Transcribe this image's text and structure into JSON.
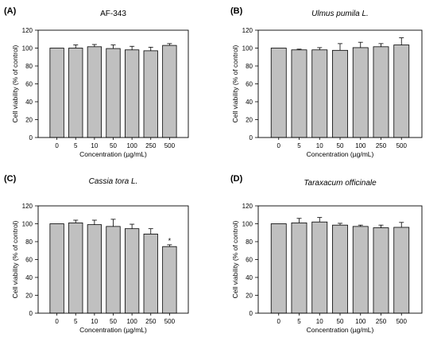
{
  "chart_data": [
    {
      "type": "bar",
      "panel": "(A)",
      "title": "AF-343",
      "title_style": "normal",
      "xlabel": "Concentration (µg/mL)",
      "ylabel": "Cell viability (% of control)",
      "ylim": [
        0,
        120
      ],
      "yticks": [
        "0",
        "20",
        "40",
        "60",
        "80",
        "100",
        "120"
      ],
      "categories": [
        "0",
        "5",
        "10",
        "50",
        "100",
        "250",
        "500"
      ],
      "values": [
        100,
        100,
        101.5,
        99.5,
        98,
        97,
        103
      ],
      "errors": [
        0,
        3.5,
        2.5,
        4,
        4,
        4,
        2
      ],
      "annotations": [
        "",
        "",
        "",
        "",
        "",
        "",
        ""
      ],
      "bar_color": "#c0c0c0"
    },
    {
      "type": "bar",
      "panel": "(B)",
      "title": "Ulmus pumila L.",
      "title_style": "italic",
      "xlabel": "Concentration (µg/mL)",
      "ylabel": "Cell viability (% of control)",
      "ylim": [
        0,
        120
      ],
      "yticks": [
        "0",
        "20",
        "40",
        "60",
        "80",
        "100",
        "120"
      ],
      "categories": [
        "0",
        "5",
        "10",
        "50",
        "100",
        "250",
        "500"
      ],
      "values": [
        100,
        98,
        98,
        97.5,
        100.5,
        101.5,
        103.5
      ],
      "errors": [
        0,
        0.8,
        2.5,
        7.5,
        6,
        3.5,
        8
      ],
      "annotations": [
        "",
        "",
        "",
        "",
        "",
        "",
        ""
      ],
      "bar_color": "#c0c0c0"
    },
    {
      "type": "bar",
      "panel": "(C)",
      "title": "Cassia tora L.",
      "title_style": "italic",
      "xlabel": "Concentration (µg/mL)",
      "ylabel": "Cell viability (% of control)",
      "ylim": [
        0,
        120
      ],
      "yticks": [
        "0",
        "20",
        "40",
        "60",
        "80",
        "100",
        "120"
      ],
      "categories": [
        "0",
        "5",
        "10",
        "50",
        "100",
        "250",
        "500"
      ],
      "values": [
        100,
        101,
        99,
        97,
        94.5,
        88.5,
        74.5
      ],
      "errors": [
        0,
        3,
        5,
        8,
        5,
        6,
        2
      ],
      "annotations": [
        "",
        "",
        "",
        "",
        "",
        "",
        "*"
      ],
      "bar_color": "#c0c0c0"
    },
    {
      "type": "bar",
      "panel": "(D)",
      "title": "Taraxacum officinale",
      "title_style": "italic",
      "xlabel": "Concentration (µg/mL)",
      "ylabel": "Cell viability (% of control)",
      "ylim": [
        0,
        120
      ],
      "yticks": [
        "0",
        "20",
        "40",
        "60",
        "80",
        "100",
        "120"
      ],
      "categories": [
        "0",
        "5",
        "10",
        "50",
        "100",
        "250",
        "500"
      ],
      "values": [
        100,
        101,
        102,
        98.5,
        97,
        95.5,
        96
      ],
      "errors": [
        0,
        5,
        5,
        2,
        1.5,
        3,
        5.5
      ],
      "annotations": [
        "",
        "",
        "",
        "",
        "",
        "",
        ""
      ],
      "bar_color": "#c0c0c0"
    }
  ]
}
